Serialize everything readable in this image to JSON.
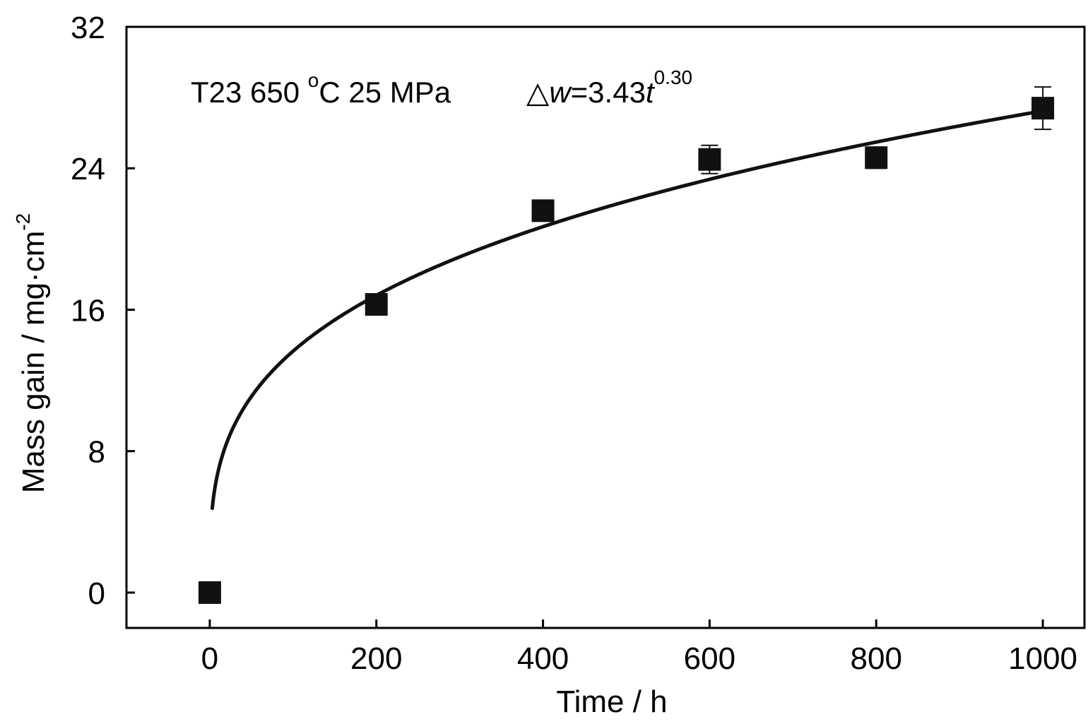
{
  "chart_data": {
    "type": "scatter",
    "xlabel": "Time / h",
    "ylabel": {
      "main": "Mass gain / mg·cm",
      "superscript": "-2"
    },
    "x_ticks": [
      0,
      200,
      400,
      600,
      800,
      1000
    ],
    "y_ticks": [
      0,
      8,
      16,
      24,
      32
    ],
    "xlim": [
      -100,
      1050
    ],
    "ylim": [
      -2,
      32
    ],
    "grid": false,
    "annotation": {
      "condition_prefix": "T23 650 ",
      "degree": "o",
      "condition_suffix": "C 25 MPa",
      "equation_symbol": "△",
      "equation_var": "w",
      "equation_eq": "=3.43",
      "equation_t": "t",
      "equation_exp": "0.30"
    },
    "series": [
      {
        "marker": "filled-square",
        "x": [
          0,
          200,
          400,
          600,
          800,
          1000
        ],
        "y": [
          0,
          16.3,
          21.6,
          24.5,
          24.6,
          27.4
        ],
        "error": [
          0,
          0.2,
          0.4,
          0.8,
          0.6,
          1.2
        ]
      }
    ],
    "fit": {
      "coefficient": 3.43,
      "exponent": 0.3,
      "x_start": 3,
      "x_end": 1000
    },
    "colors": {
      "marker": "#111111",
      "line": "#111111",
      "axis": "#000000"
    }
  }
}
